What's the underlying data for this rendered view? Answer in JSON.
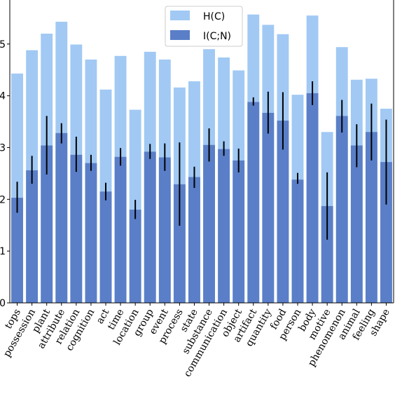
{
  "chart_data": {
    "type": "bar",
    "categories": [
      "tops",
      "possession",
      "plant",
      "attribute",
      "relation",
      "cognition",
      "act",
      "time",
      "location",
      "group",
      "event",
      "process",
      "state",
      "substance",
      "communication",
      "object",
      "artifact",
      "quantity",
      "food",
      "person",
      "body",
      "motive",
      "phenomenon",
      "animal",
      "feeling",
      "shape"
    ],
    "series": [
      {
        "name": "H(C)",
        "color": "#a1c9f4",
        "values": [
          4.43,
          4.88,
          5.2,
          5.43,
          4.99,
          4.7,
          4.12,
          4.77,
          3.73,
          4.85,
          4.7,
          4.16,
          4.28,
          4.9,
          4.74,
          4.49,
          5.57,
          5.37,
          5.19,
          4.02,
          5.55,
          3.3,
          4.94,
          4.31,
          4.33,
          3.75
        ]
      },
      {
        "name": "I(C;N)",
        "color": "#5a7fc8",
        "values": [
          2.03,
          2.56,
          3.04,
          3.28,
          2.86,
          2.7,
          2.15,
          2.82,
          1.8,
          2.92,
          2.81,
          2.29,
          2.43,
          3.05,
          2.97,
          2.75,
          3.88,
          3.67,
          3.52,
          2.38,
          4.05,
          1.87,
          3.61,
          3.04,
          3.3,
          2.72
        ],
        "error_low": [
          1.74,
          2.3,
          2.48,
          3.08,
          2.53,
          2.55,
          1.98,
          2.65,
          1.62,
          2.78,
          2.55,
          1.49,
          2.22,
          2.73,
          2.84,
          2.52,
          3.81,
          3.27,
          2.96,
          2.3,
          3.82,
          1.22,
          3.29,
          2.62,
          2.75,
          1.9
        ],
        "error_high": [
          2.34,
          2.84,
          3.61,
          3.47,
          3.21,
          2.86,
          2.32,
          2.99,
          1.99,
          3.07,
          3.08,
          3.1,
          2.63,
          3.37,
          3.12,
          2.98,
          3.97,
          4.08,
          4.07,
          2.51,
          4.28,
          2.52,
          3.92,
          3.45,
          3.85,
          3.54
        ]
      }
    ],
    "ylim": [
      0,
      5.85
    ],
    "yticks": [
      "0",
      "1",
      "2",
      "3",
      "4",
      "5"
    ],
    "title": "",
    "xlabel": "",
    "ylabel": "",
    "legend_position": "top-center",
    "grid": false,
    "error_bar_color": "#000000"
  }
}
